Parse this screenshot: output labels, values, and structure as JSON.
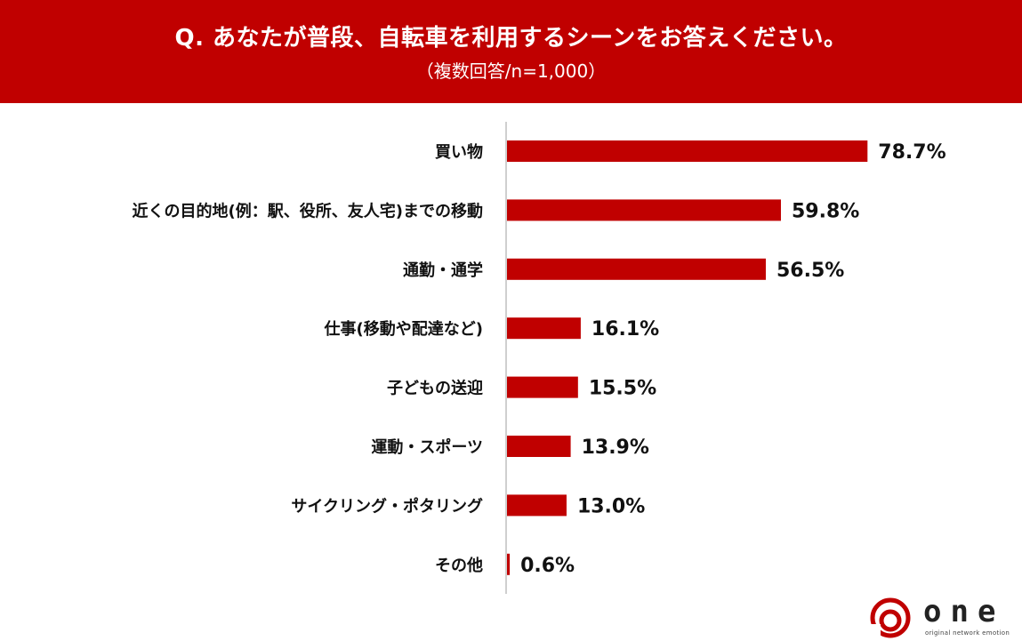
{
  "header": {
    "title": "Q. あなたが普段、自転車を利用するシーンをお答えください。",
    "subtitle": "（複数回答/n=1,000）"
  },
  "colors": {
    "accent": "#c00000",
    "axis": "#bfbfbf"
  },
  "chart_data": {
    "type": "bar",
    "orientation": "horizontal",
    "categories": [
      "買い物",
      "近くの目的地(例：駅、役所、友人宅)までの移動",
      "通勤・通学",
      "仕事(移動や配達など)",
      "子どもの送迎",
      "運動・スポーツ",
      "サイクリング・ポタリング",
      "その他"
    ],
    "values": [
      78.7,
      59.8,
      56.5,
      16.1,
      15.5,
      13.9,
      13.0,
      0.6
    ],
    "value_labels": [
      "78.7%",
      "59.8%",
      "56.5%",
      "16.1%",
      "15.5%",
      "13.9%",
      "13.0%",
      "0.6%"
    ],
    "unit": "%",
    "xlim": [
      0,
      100
    ],
    "grid": false
  },
  "logo": {
    "icon": "spiral-logo-icon",
    "name": "one",
    "tagline": "original network emotion"
  }
}
